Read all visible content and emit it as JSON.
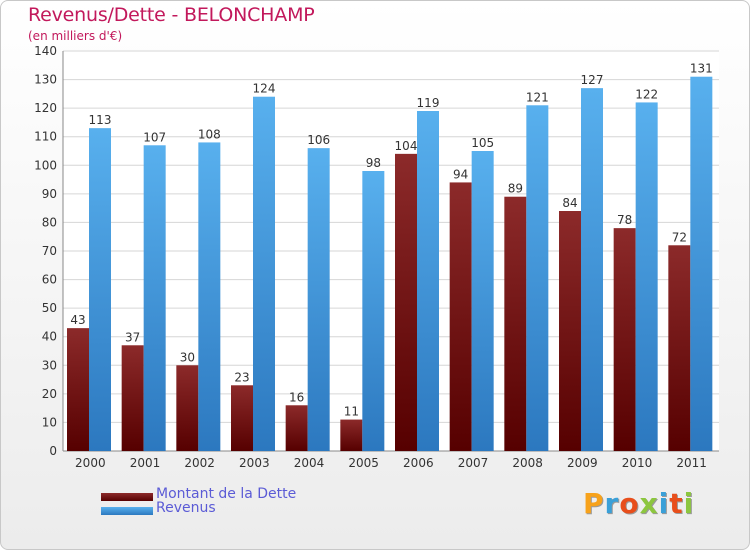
{
  "chart_data": {
    "type": "bar",
    "title": "Revenus/Dette - BELONCHAMP",
    "subtitle": "(en milliers d'€)",
    "categories": [
      "2000",
      "2001",
      "2002",
      "2003",
      "2004",
      "2005",
      "2006",
      "2007",
      "2008",
      "2009",
      "2010",
      "2011"
    ],
    "series": [
      {
        "name": "Montant de la Dette",
        "values": [
          43,
          37,
          30,
          23,
          16,
          11,
          104,
          94,
          89,
          84,
          78,
          72
        ],
        "color": "#7a1212"
      },
      {
        "name": "Revenus",
        "values": [
          113,
          107,
          108,
          124,
          106,
          98,
          119,
          105,
          121,
          127,
          122,
          131
        ],
        "color": "#4ba3e3"
      }
    ],
    "ylim": [
      0,
      140
    ],
    "yticks": [
      0,
      10,
      20,
      30,
      40,
      50,
      60,
      70,
      80,
      90,
      100,
      110,
      120,
      130,
      140
    ],
    "grid": true,
    "legend": "bottom-left"
  },
  "branding": {
    "letters": [
      "P",
      "r",
      "o",
      "x",
      "i",
      "t",
      "i"
    ],
    "colors": [
      "#f7a21b",
      "#3aa0d8",
      "#e84e1b",
      "#8cc63f",
      "#3aa0d8",
      "#e84e1b",
      "#8cc63f"
    ]
  }
}
